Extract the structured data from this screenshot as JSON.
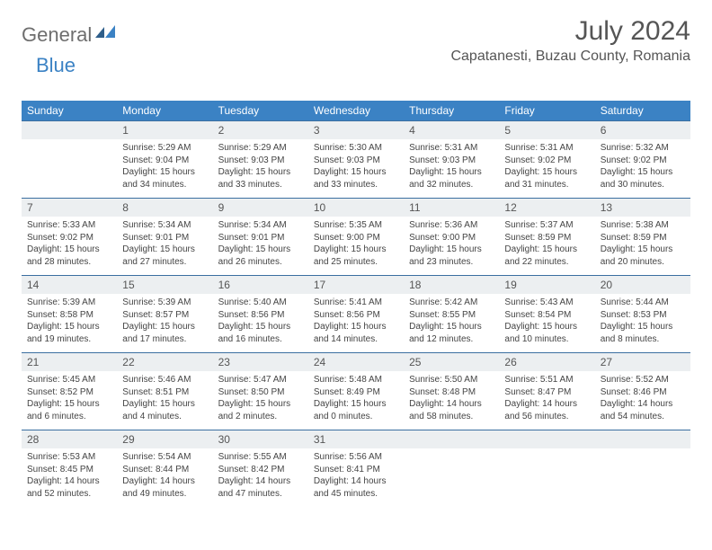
{
  "logo": {
    "part1": "General",
    "part2": "Blue"
  },
  "title": "July 2024",
  "location": "Capatanesti, Buzau County, Romania",
  "colors": {
    "header_bg": "#3b82c4",
    "header_text": "#ffffff",
    "daynum_bg": "#eceff1",
    "border": "#3b6fa0",
    "logo_gray": "#6e6e6e",
    "logo_blue": "#3b82c4"
  },
  "day_names": [
    "Sunday",
    "Monday",
    "Tuesday",
    "Wednesday",
    "Thursday",
    "Friday",
    "Saturday"
  ],
  "weeks": [
    {
      "nums": [
        "",
        "1",
        "2",
        "3",
        "4",
        "5",
        "6"
      ],
      "cells": [
        null,
        {
          "sunrise": "Sunrise: 5:29 AM",
          "sunset": "Sunset: 9:04 PM",
          "day1": "Daylight: 15 hours",
          "day2": "and 34 minutes."
        },
        {
          "sunrise": "Sunrise: 5:29 AM",
          "sunset": "Sunset: 9:03 PM",
          "day1": "Daylight: 15 hours",
          "day2": "and 33 minutes."
        },
        {
          "sunrise": "Sunrise: 5:30 AM",
          "sunset": "Sunset: 9:03 PM",
          "day1": "Daylight: 15 hours",
          "day2": "and 33 minutes."
        },
        {
          "sunrise": "Sunrise: 5:31 AM",
          "sunset": "Sunset: 9:03 PM",
          "day1": "Daylight: 15 hours",
          "day2": "and 32 minutes."
        },
        {
          "sunrise": "Sunrise: 5:31 AM",
          "sunset": "Sunset: 9:02 PM",
          "day1": "Daylight: 15 hours",
          "day2": "and 31 minutes."
        },
        {
          "sunrise": "Sunrise: 5:32 AM",
          "sunset": "Sunset: 9:02 PM",
          "day1": "Daylight: 15 hours",
          "day2": "and 30 minutes."
        }
      ]
    },
    {
      "nums": [
        "7",
        "8",
        "9",
        "10",
        "11",
        "12",
        "13"
      ],
      "cells": [
        {
          "sunrise": "Sunrise: 5:33 AM",
          "sunset": "Sunset: 9:02 PM",
          "day1": "Daylight: 15 hours",
          "day2": "and 28 minutes."
        },
        {
          "sunrise": "Sunrise: 5:34 AM",
          "sunset": "Sunset: 9:01 PM",
          "day1": "Daylight: 15 hours",
          "day2": "and 27 minutes."
        },
        {
          "sunrise": "Sunrise: 5:34 AM",
          "sunset": "Sunset: 9:01 PM",
          "day1": "Daylight: 15 hours",
          "day2": "and 26 minutes."
        },
        {
          "sunrise": "Sunrise: 5:35 AM",
          "sunset": "Sunset: 9:00 PM",
          "day1": "Daylight: 15 hours",
          "day2": "and 25 minutes."
        },
        {
          "sunrise": "Sunrise: 5:36 AM",
          "sunset": "Sunset: 9:00 PM",
          "day1": "Daylight: 15 hours",
          "day2": "and 23 minutes."
        },
        {
          "sunrise": "Sunrise: 5:37 AM",
          "sunset": "Sunset: 8:59 PM",
          "day1": "Daylight: 15 hours",
          "day2": "and 22 minutes."
        },
        {
          "sunrise": "Sunrise: 5:38 AM",
          "sunset": "Sunset: 8:59 PM",
          "day1": "Daylight: 15 hours",
          "day2": "and 20 minutes."
        }
      ]
    },
    {
      "nums": [
        "14",
        "15",
        "16",
        "17",
        "18",
        "19",
        "20"
      ],
      "cells": [
        {
          "sunrise": "Sunrise: 5:39 AM",
          "sunset": "Sunset: 8:58 PM",
          "day1": "Daylight: 15 hours",
          "day2": "and 19 minutes."
        },
        {
          "sunrise": "Sunrise: 5:39 AM",
          "sunset": "Sunset: 8:57 PM",
          "day1": "Daylight: 15 hours",
          "day2": "and 17 minutes."
        },
        {
          "sunrise": "Sunrise: 5:40 AM",
          "sunset": "Sunset: 8:56 PM",
          "day1": "Daylight: 15 hours",
          "day2": "and 16 minutes."
        },
        {
          "sunrise": "Sunrise: 5:41 AM",
          "sunset": "Sunset: 8:56 PM",
          "day1": "Daylight: 15 hours",
          "day2": "and 14 minutes."
        },
        {
          "sunrise": "Sunrise: 5:42 AM",
          "sunset": "Sunset: 8:55 PM",
          "day1": "Daylight: 15 hours",
          "day2": "and 12 minutes."
        },
        {
          "sunrise": "Sunrise: 5:43 AM",
          "sunset": "Sunset: 8:54 PM",
          "day1": "Daylight: 15 hours",
          "day2": "and 10 minutes."
        },
        {
          "sunrise": "Sunrise: 5:44 AM",
          "sunset": "Sunset: 8:53 PM",
          "day1": "Daylight: 15 hours",
          "day2": "and 8 minutes."
        }
      ]
    },
    {
      "nums": [
        "21",
        "22",
        "23",
        "24",
        "25",
        "26",
        "27"
      ],
      "cells": [
        {
          "sunrise": "Sunrise: 5:45 AM",
          "sunset": "Sunset: 8:52 PM",
          "day1": "Daylight: 15 hours",
          "day2": "and 6 minutes."
        },
        {
          "sunrise": "Sunrise: 5:46 AM",
          "sunset": "Sunset: 8:51 PM",
          "day1": "Daylight: 15 hours",
          "day2": "and 4 minutes."
        },
        {
          "sunrise": "Sunrise: 5:47 AM",
          "sunset": "Sunset: 8:50 PM",
          "day1": "Daylight: 15 hours",
          "day2": "and 2 minutes."
        },
        {
          "sunrise": "Sunrise: 5:48 AM",
          "sunset": "Sunset: 8:49 PM",
          "day1": "Daylight: 15 hours",
          "day2": "and 0 minutes."
        },
        {
          "sunrise": "Sunrise: 5:50 AM",
          "sunset": "Sunset: 8:48 PM",
          "day1": "Daylight: 14 hours",
          "day2": "and 58 minutes."
        },
        {
          "sunrise": "Sunrise: 5:51 AM",
          "sunset": "Sunset: 8:47 PM",
          "day1": "Daylight: 14 hours",
          "day2": "and 56 minutes."
        },
        {
          "sunrise": "Sunrise: 5:52 AM",
          "sunset": "Sunset: 8:46 PM",
          "day1": "Daylight: 14 hours",
          "day2": "and 54 minutes."
        }
      ]
    },
    {
      "nums": [
        "28",
        "29",
        "30",
        "31",
        "",
        "",
        ""
      ],
      "cells": [
        {
          "sunrise": "Sunrise: 5:53 AM",
          "sunset": "Sunset: 8:45 PM",
          "day1": "Daylight: 14 hours",
          "day2": "and 52 minutes."
        },
        {
          "sunrise": "Sunrise: 5:54 AM",
          "sunset": "Sunset: 8:44 PM",
          "day1": "Daylight: 14 hours",
          "day2": "and 49 minutes."
        },
        {
          "sunrise": "Sunrise: 5:55 AM",
          "sunset": "Sunset: 8:42 PM",
          "day1": "Daylight: 14 hours",
          "day2": "and 47 minutes."
        },
        {
          "sunrise": "Sunrise: 5:56 AM",
          "sunset": "Sunset: 8:41 PM",
          "day1": "Daylight: 14 hours",
          "day2": "and 45 minutes."
        },
        null,
        null,
        null
      ]
    }
  ]
}
